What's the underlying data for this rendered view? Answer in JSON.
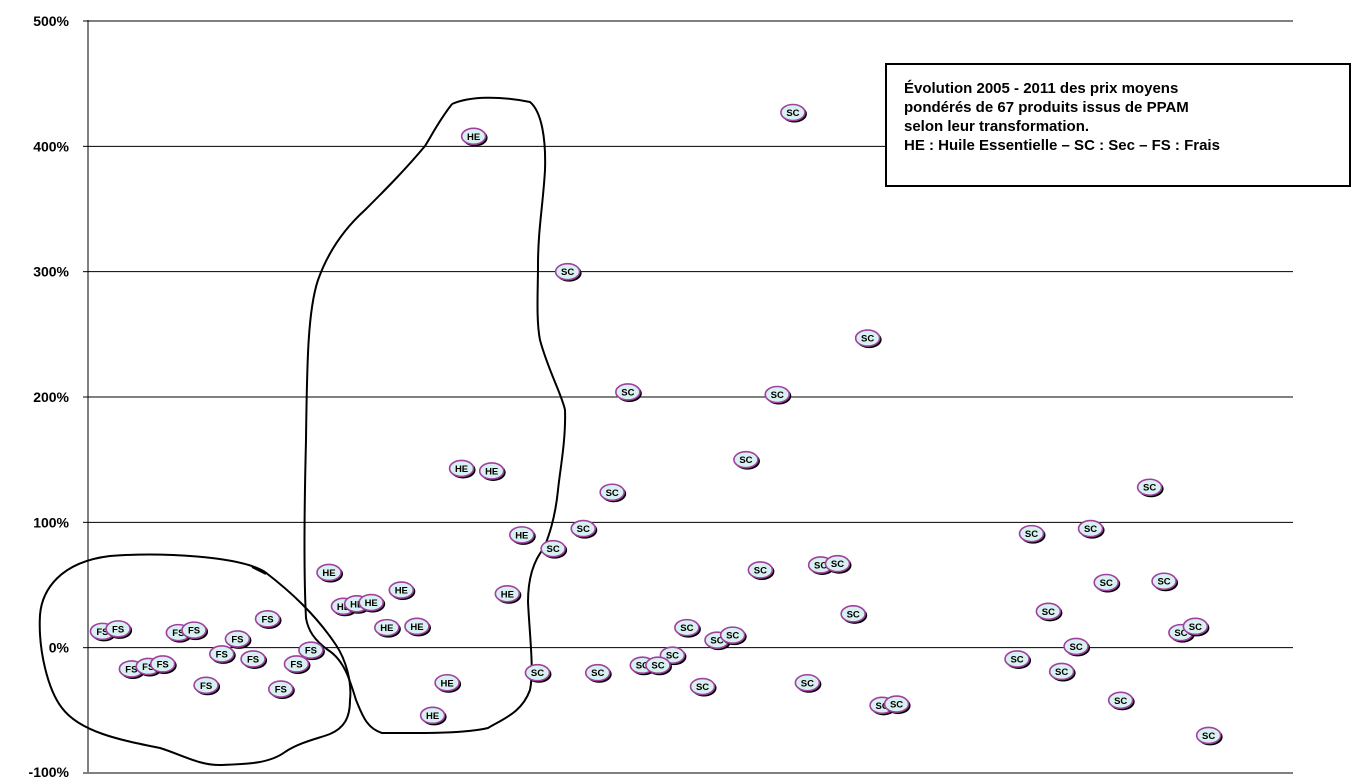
{
  "chart_data": {
    "type": "scatter",
    "title": "",
    "xlabel": "",
    "ylabel": "",
    "ylim": [
      -1,
      5
    ],
    "y_format": "percent",
    "y_ticks": [
      {
        "value": 5,
        "label": "500%"
      },
      {
        "value": 4,
        "label": "400%"
      },
      {
        "value": 3,
        "label": "300%"
      },
      {
        "value": 2,
        "label": "200%"
      },
      {
        "value": 1,
        "label": "100%"
      },
      {
        "value": 0,
        "label": "0%"
      },
      {
        "value": -1,
        "label": "-100%"
      }
    ],
    "xlim": [
      0,
      1
    ],
    "x_ticks_shown": false,
    "grid": "horizontal",
    "marker_fill": "#d8f0f0",
    "marker_stroke": "#a040a0",
    "outline_color": "#000000",
    "annotation_lines": [
      "Évolution 2005 - 2011 des prix moyens",
      "pondérés de 67 produits issus de PPAM",
      "selon leur transformation.",
      "HE : Huile Essentielle – SC : Sec – FS : Frais"
    ],
    "points": [
      {
        "label": "FS",
        "x": 0.012,
        "y": 0.13
      },
      {
        "label": "FS",
        "x": 0.025,
        "y": 0.15
      },
      {
        "label": "FS",
        "x": 0.075,
        "y": 0.12
      },
      {
        "label": "FS",
        "x": 0.088,
        "y": 0.14
      },
      {
        "label": "FS",
        "x": 0.124,
        "y": 0.07
      },
      {
        "label": "FS",
        "x": 0.149,
        "y": 0.23
      },
      {
        "label": "FS",
        "x": 0.111,
        "y": -0.05
      },
      {
        "label": "FS",
        "x": 0.137,
        "y": -0.09
      },
      {
        "label": "FS",
        "x": 0.185,
        "y": -0.02
      },
      {
        "label": "FS",
        "x": 0.173,
        "y": -0.13
      },
      {
        "label": "FS",
        "x": 0.036,
        "y": -0.17
      },
      {
        "label": "FS",
        "x": 0.05,
        "y": -0.15
      },
      {
        "label": "FS",
        "x": 0.062,
        "y": -0.13
      },
      {
        "label": "FS",
        "x": 0.098,
        "y": -0.3
      },
      {
        "label": "FS",
        "x": 0.16,
        "y": -0.33
      },
      {
        "label": "HE",
        "x": 0.32,
        "y": 4.08
      },
      {
        "label": "HE",
        "x": 0.31,
        "y": 1.43
      },
      {
        "label": "HE",
        "x": 0.335,
        "y": 1.41
      },
      {
        "label": "HE",
        "x": 0.36,
        "y": 0.9
      },
      {
        "label": "HE",
        "x": 0.348,
        "y": 0.43
      },
      {
        "label": "HE",
        "x": 0.2,
        "y": 0.6
      },
      {
        "label": "HE",
        "x": 0.212,
        "y": 0.33
      },
      {
        "label": "HE",
        "x": 0.223,
        "y": 0.35
      },
      {
        "label": "HE",
        "x": 0.235,
        "y": 0.36
      },
      {
        "label": "HE",
        "x": 0.26,
        "y": 0.46
      },
      {
        "label": "HE",
        "x": 0.248,
        "y": 0.16
      },
      {
        "label": "HE",
        "x": 0.273,
        "y": 0.17
      },
      {
        "label": "HE",
        "x": 0.298,
        "y": -0.28
      },
      {
        "label": "HE",
        "x": 0.286,
        "y": -0.54
      },
      {
        "label": "SC",
        "x": 0.585,
        "y": 4.27
      },
      {
        "label": "SC",
        "x": 0.398,
        "y": 3.0
      },
      {
        "label": "SC",
        "x": 0.647,
        "y": 2.47
      },
      {
        "label": "SC",
        "x": 0.448,
        "y": 2.04
      },
      {
        "label": "SC",
        "x": 0.572,
        "y": 2.02
      },
      {
        "label": "SC",
        "x": 0.546,
        "y": 1.5
      },
      {
        "label": "SC",
        "x": 0.435,
        "y": 1.24
      },
      {
        "label": "SC",
        "x": 0.411,
        "y": 0.95
      },
      {
        "label": "SC",
        "x": 0.386,
        "y": 0.79
      },
      {
        "label": "SC",
        "x": 0.881,
        "y": 1.28
      },
      {
        "label": "SC",
        "x": 0.832,
        "y": 0.95
      },
      {
        "label": "SC",
        "x": 0.783,
        "y": 0.91
      },
      {
        "label": "SC",
        "x": 0.558,
        "y": 0.62
      },
      {
        "label": "SC",
        "x": 0.608,
        "y": 0.66
      },
      {
        "label": "SC",
        "x": 0.622,
        "y": 0.67
      },
      {
        "label": "SC",
        "x": 0.845,
        "y": 0.52
      },
      {
        "label": "SC",
        "x": 0.893,
        "y": 0.53
      },
      {
        "label": "SC",
        "x": 0.635,
        "y": 0.27
      },
      {
        "label": "SC",
        "x": 0.797,
        "y": 0.29
      },
      {
        "label": "SC",
        "x": 0.497,
        "y": 0.16
      },
      {
        "label": "SC",
        "x": 0.522,
        "y": 0.06
      },
      {
        "label": "SC",
        "x": 0.535,
        "y": 0.1
      },
      {
        "label": "SC",
        "x": 0.907,
        "y": 0.12
      },
      {
        "label": "SC",
        "x": 0.919,
        "y": 0.17
      },
      {
        "label": "SC",
        "x": 0.82,
        "y": 0.01
      },
      {
        "label": "SC",
        "x": 0.485,
        "y": -0.06
      },
      {
        "label": "SC",
        "x": 0.46,
        "y": -0.14
      },
      {
        "label": "SC",
        "x": 0.473,
        "y": -0.14
      },
      {
        "label": "SC",
        "x": 0.373,
        "y": -0.2
      },
      {
        "label": "SC",
        "x": 0.423,
        "y": -0.2
      },
      {
        "label": "SC",
        "x": 0.771,
        "y": -0.09
      },
      {
        "label": "SC",
        "x": 0.808,
        "y": -0.19
      },
      {
        "label": "SC",
        "x": 0.51,
        "y": -0.31
      },
      {
        "label": "SC",
        "x": 0.597,
        "y": -0.28
      },
      {
        "label": "SC",
        "x": 0.857,
        "y": -0.42
      },
      {
        "label": "SC",
        "x": 0.659,
        "y": -0.46
      },
      {
        "label": "SC",
        "x": 0.671,
        "y": -0.45
      },
      {
        "label": "SC",
        "x": 0.93,
        "y": -0.7
      }
    ]
  }
}
